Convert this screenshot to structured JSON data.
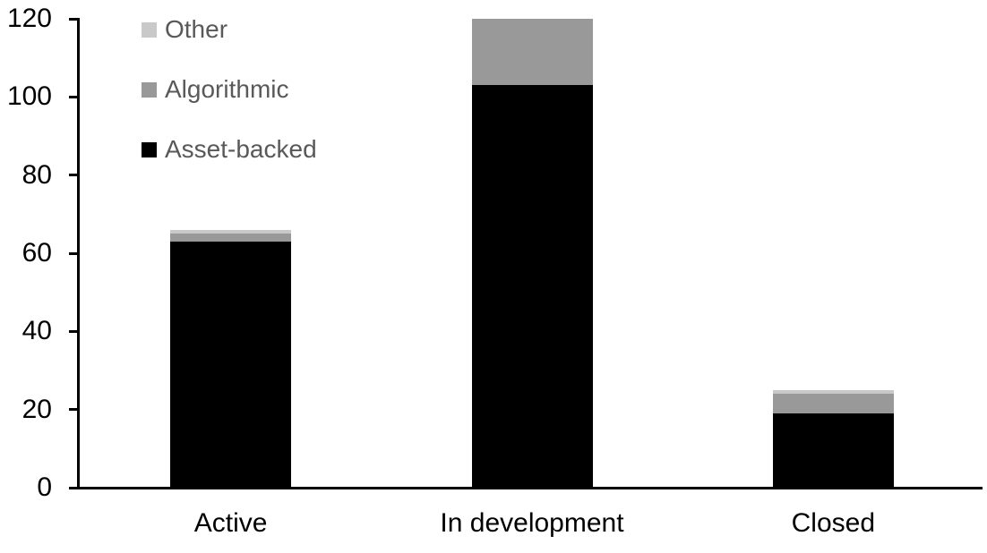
{
  "chart_data": {
    "type": "bar",
    "stacked": true,
    "title": "",
    "xlabel": "",
    "ylabel": "",
    "categories": [
      "Active",
      "In development",
      "Closed"
    ],
    "series": [
      {
        "name": "Asset-backed",
        "color": "#000000",
        "values": [
          63,
          103,
          19
        ]
      },
      {
        "name": "Algorithmic",
        "color": "#999999",
        "values": [
          2,
          17,
          5
        ]
      },
      {
        "name": "Other",
        "color": "#c9c9c9",
        "values": [
          1,
          0,
          1
        ]
      }
    ],
    "ylim": [
      0,
      120
    ],
    "yticks": [
      0,
      20,
      40,
      60,
      80,
      100,
      120
    ],
    "grid": false,
    "legend": {
      "position": "top-left",
      "entries": [
        "Other",
        "Algorithmic",
        "Asset-backed"
      ],
      "text_color": "#595959"
    },
    "colors": {
      "axis": "#000000",
      "tick_label": "#000000",
      "category_label": "#000000",
      "background": "#ffffff"
    }
  }
}
